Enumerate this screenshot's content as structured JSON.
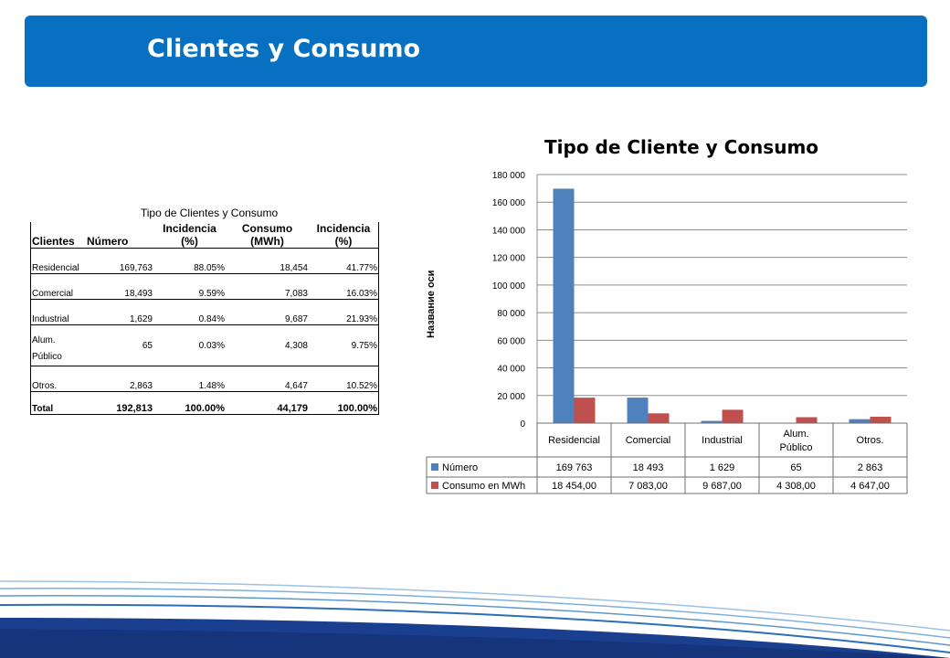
{
  "header": {
    "title": "Clientes y Consumo",
    "bg_color": "#0870c0"
  },
  "table": {
    "title": "Tipo de Clientes y Consumo",
    "columns": [
      "Clientes",
      "Número",
      "Incidencia (%)",
      "Consumo (MWh)",
      "Incidencia (%)"
    ],
    "rows": [
      {
        "cliente": "Residencial",
        "numero": "169,763",
        "inc_num": "88.05%",
        "consumo": "18,454",
        "inc_con": "41.77%"
      },
      {
        "cliente": "Comercial",
        "numero": "18,493",
        "inc_num": "9.59%",
        "consumo": "7,083",
        "inc_con": "16.03%"
      },
      {
        "cliente": "Industrial",
        "numero": "1,629",
        "inc_num": "0.84%",
        "consumo": "9,687",
        "inc_con": "21.93%"
      },
      {
        "cliente": "Alum. Público",
        "numero": "65",
        "inc_num": "0.03%",
        "consumo": "4,308",
        "inc_con": "9.75%"
      },
      {
        "cliente": "Otros.",
        "numero": "2,863",
        "inc_num": "1.48%",
        "consumo": "4,647",
        "inc_con": "10.52%"
      }
    ],
    "total": {
      "cliente": "Total",
      "numero": "192,813",
      "inc_num": "100.00%",
      "consumo": "44,179",
      "inc_con": "100.00%"
    }
  },
  "chart_data": {
    "type": "bar",
    "title": "Tipo de Cliente y Consumo",
    "ylabel": "Название оси",
    "xlabel": "",
    "categories": [
      "Residencial",
      "Comercial",
      "Industrial",
      "Alum. Público",
      "Otros."
    ],
    "series": [
      {
        "name": "Número",
        "color": "#4f81bd",
        "values": [
          169763,
          18493,
          1629,
          65,
          2863
        ],
        "labels": [
          "169 763",
          "18 493",
          "1 629",
          "65",
          "2 863"
        ]
      },
      {
        "name": "Consumo en MWh",
        "color": "#c0504d",
        "values": [
          18454,
          7083,
          9687,
          4308,
          4647
        ],
        "labels": [
          "18 454,00",
          "7 083,00",
          "9 687,00",
          "4 308,00",
          "4 647,00"
        ]
      }
    ],
    "ylim": [
      0,
      180000
    ],
    "yticks": [
      "0",
      "20 000",
      "40 000",
      "60 000",
      "80 000",
      "100 000",
      "120 000",
      "140 000",
      "160 000",
      "180 000"
    ],
    "grid": true,
    "legend": "data table"
  }
}
